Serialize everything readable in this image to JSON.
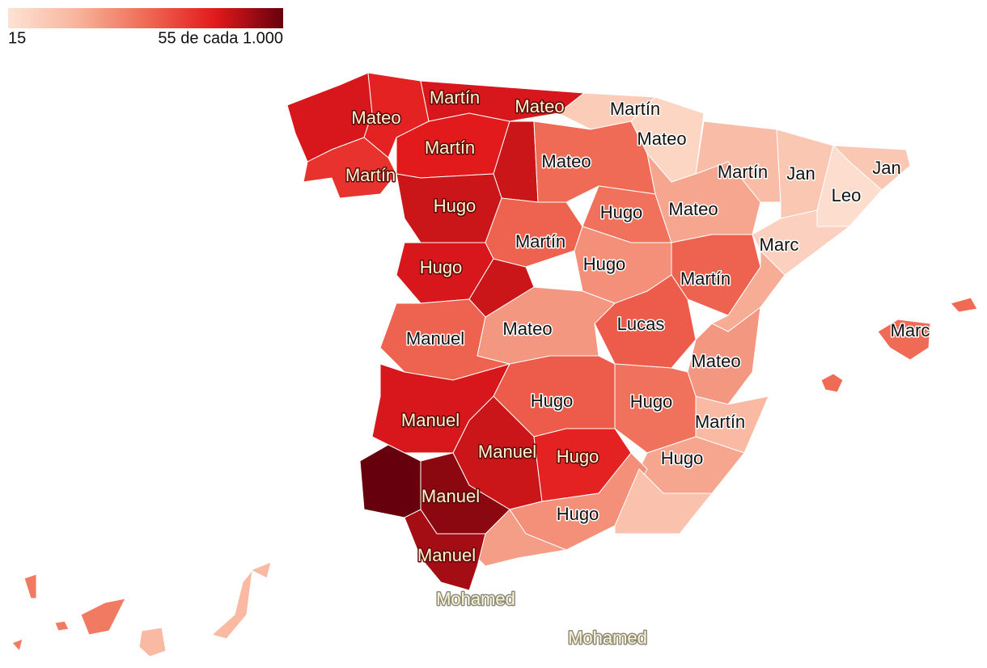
{
  "legend": {
    "colors": [
      "#fde3d4",
      "#f8b49c",
      "#ef6b55",
      "#e31a1c",
      "#67000d"
    ],
    "ticks": [
      15,
      {
        "value": 55,
        "label": "55 de cada 1.000"
      }
    ]
  },
  "regions": [
    {
      "label": "Mateo",
      "value": 46
    },
    {
      "label": "Martín",
      "value": 44
    },
    {
      "label": "Mateo",
      "value": 46
    },
    {
      "label": "Martín",
      "value": 20
    },
    {
      "label": "Mateo",
      "value": 18
    },
    {
      "label": "Martín",
      "value": 42
    },
    {
      "label": "Martín",
      "value": 45
    },
    {
      "value": 47
    },
    {
      "label": "Mateo",
      "value": 35
    },
    {
      "label": "Hugo",
      "value": 47
    },
    {
      "label": "Hugo",
      "value": 46
    },
    {
      "value": 47
    },
    {
      "label": "Martín",
      "value": 36
    },
    {
      "label": "Hugo",
      "value": 34
    },
    {
      "label": "Hugo",
      "value": 30
    },
    {
      "label": "Mateo",
      "value": 27
    },
    {
      "label": "Martín",
      "value": 23
    },
    {
      "label": "Jan",
      "value": 21
    },
    {
      "label": "Jan",
      "value": 21
    },
    {
      "label": "Leo",
      "value": 16
    },
    {
      "label": "Marc",
      "value": 19
    },
    {
      "label": "Martín",
      "value": 36
    },
    {
      "value": 26
    },
    {
      "label": "Lucas",
      "value": 37
    },
    {
      "label": "Mateo",
      "value": 29
    },
    {
      "label": "Manuel",
      "value": 36
    },
    {
      "label": "Mateo",
      "value": 29
    },
    {
      "label": "Manuel",
      "value": 46
    },
    {
      "label": "Hugo",
      "value": 37
    },
    {
      "label": "Hugo",
      "value": 34
    },
    {
      "label": "Martín",
      "value": 24
    },
    {
      "label": "Hugo",
      "value": 27
    },
    {
      "label": "Manuel",
      "value": 47
    },
    {
      "label": "Hugo",
      "value": 44
    },
    {
      "label": "Hugo",
      "value": 30
    },
    {
      "value": 22
    },
    {
      "value": 28
    },
    {
      "label": "Manuel",
      "value": 52
    },
    {
      "value": 55
    },
    {
      "label": "Manuel",
      "value": 50
    },
    {
      "label": "Marc",
      "value": 35
    },
    {
      "value": 33
    },
    {
      "value": 24
    },
    {
      "label": "Mohamed"
    },
    {
      "label": "Mohamed"
    }
  ]
}
